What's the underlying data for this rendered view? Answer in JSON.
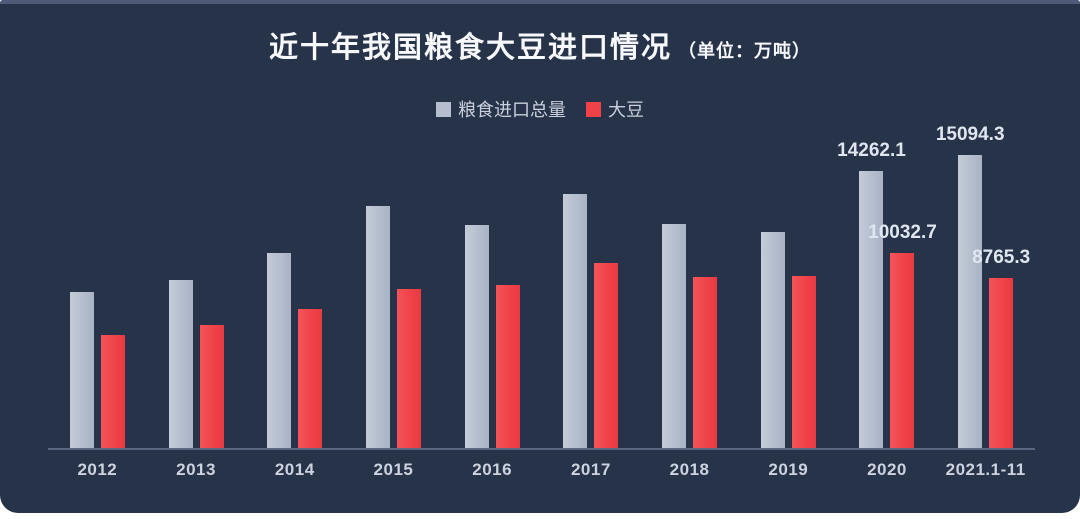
{
  "page": {
    "background": "#ffffff"
  },
  "card": {
    "background": "#273349",
    "top_strip_color": "#4e5a77",
    "axis_line_color": "#6b7690"
  },
  "chart_data": {
    "type": "bar",
    "title": "近十年我国粮食大豆进口情况",
    "unit_label": "（单位：万吨）",
    "categories": [
      "2012",
      "2013",
      "2014",
      "2015",
      "2016",
      "2017",
      "2018",
      "2019",
      "2020",
      "2021.1-11"
    ],
    "series": [
      {
        "name": "粮食进口总量",
        "color": "#b5bece",
        "values": [
          8025,
          8645,
          10042,
          12477,
          11468,
          13062,
          11555,
          11144,
          14262.1,
          15094.3
        ],
        "data_labels": [
          "",
          "",
          "",
          "",
          "",
          "",
          "",
          "",
          "14262.1",
          "15094.3"
        ]
      },
      {
        "name": "大豆",
        "color": "#ef4148",
        "values": [
          5838,
          6338,
          7140,
          8169,
          8391,
          9553,
          8803,
          8851,
          10032.7,
          8765.3
        ],
        "data_labels": [
          "",
          "",
          "",
          "",
          "",
          "",
          "",
          "",
          "10032.7",
          "8765.3"
        ]
      }
    ],
    "ylim": [
      0,
      15500
    ],
    "legend_position": "top",
    "grid": false,
    "x_axis_line": true,
    "value_label_color": "#e0e6f0",
    "x_tick_color": "#ccd2de"
  }
}
